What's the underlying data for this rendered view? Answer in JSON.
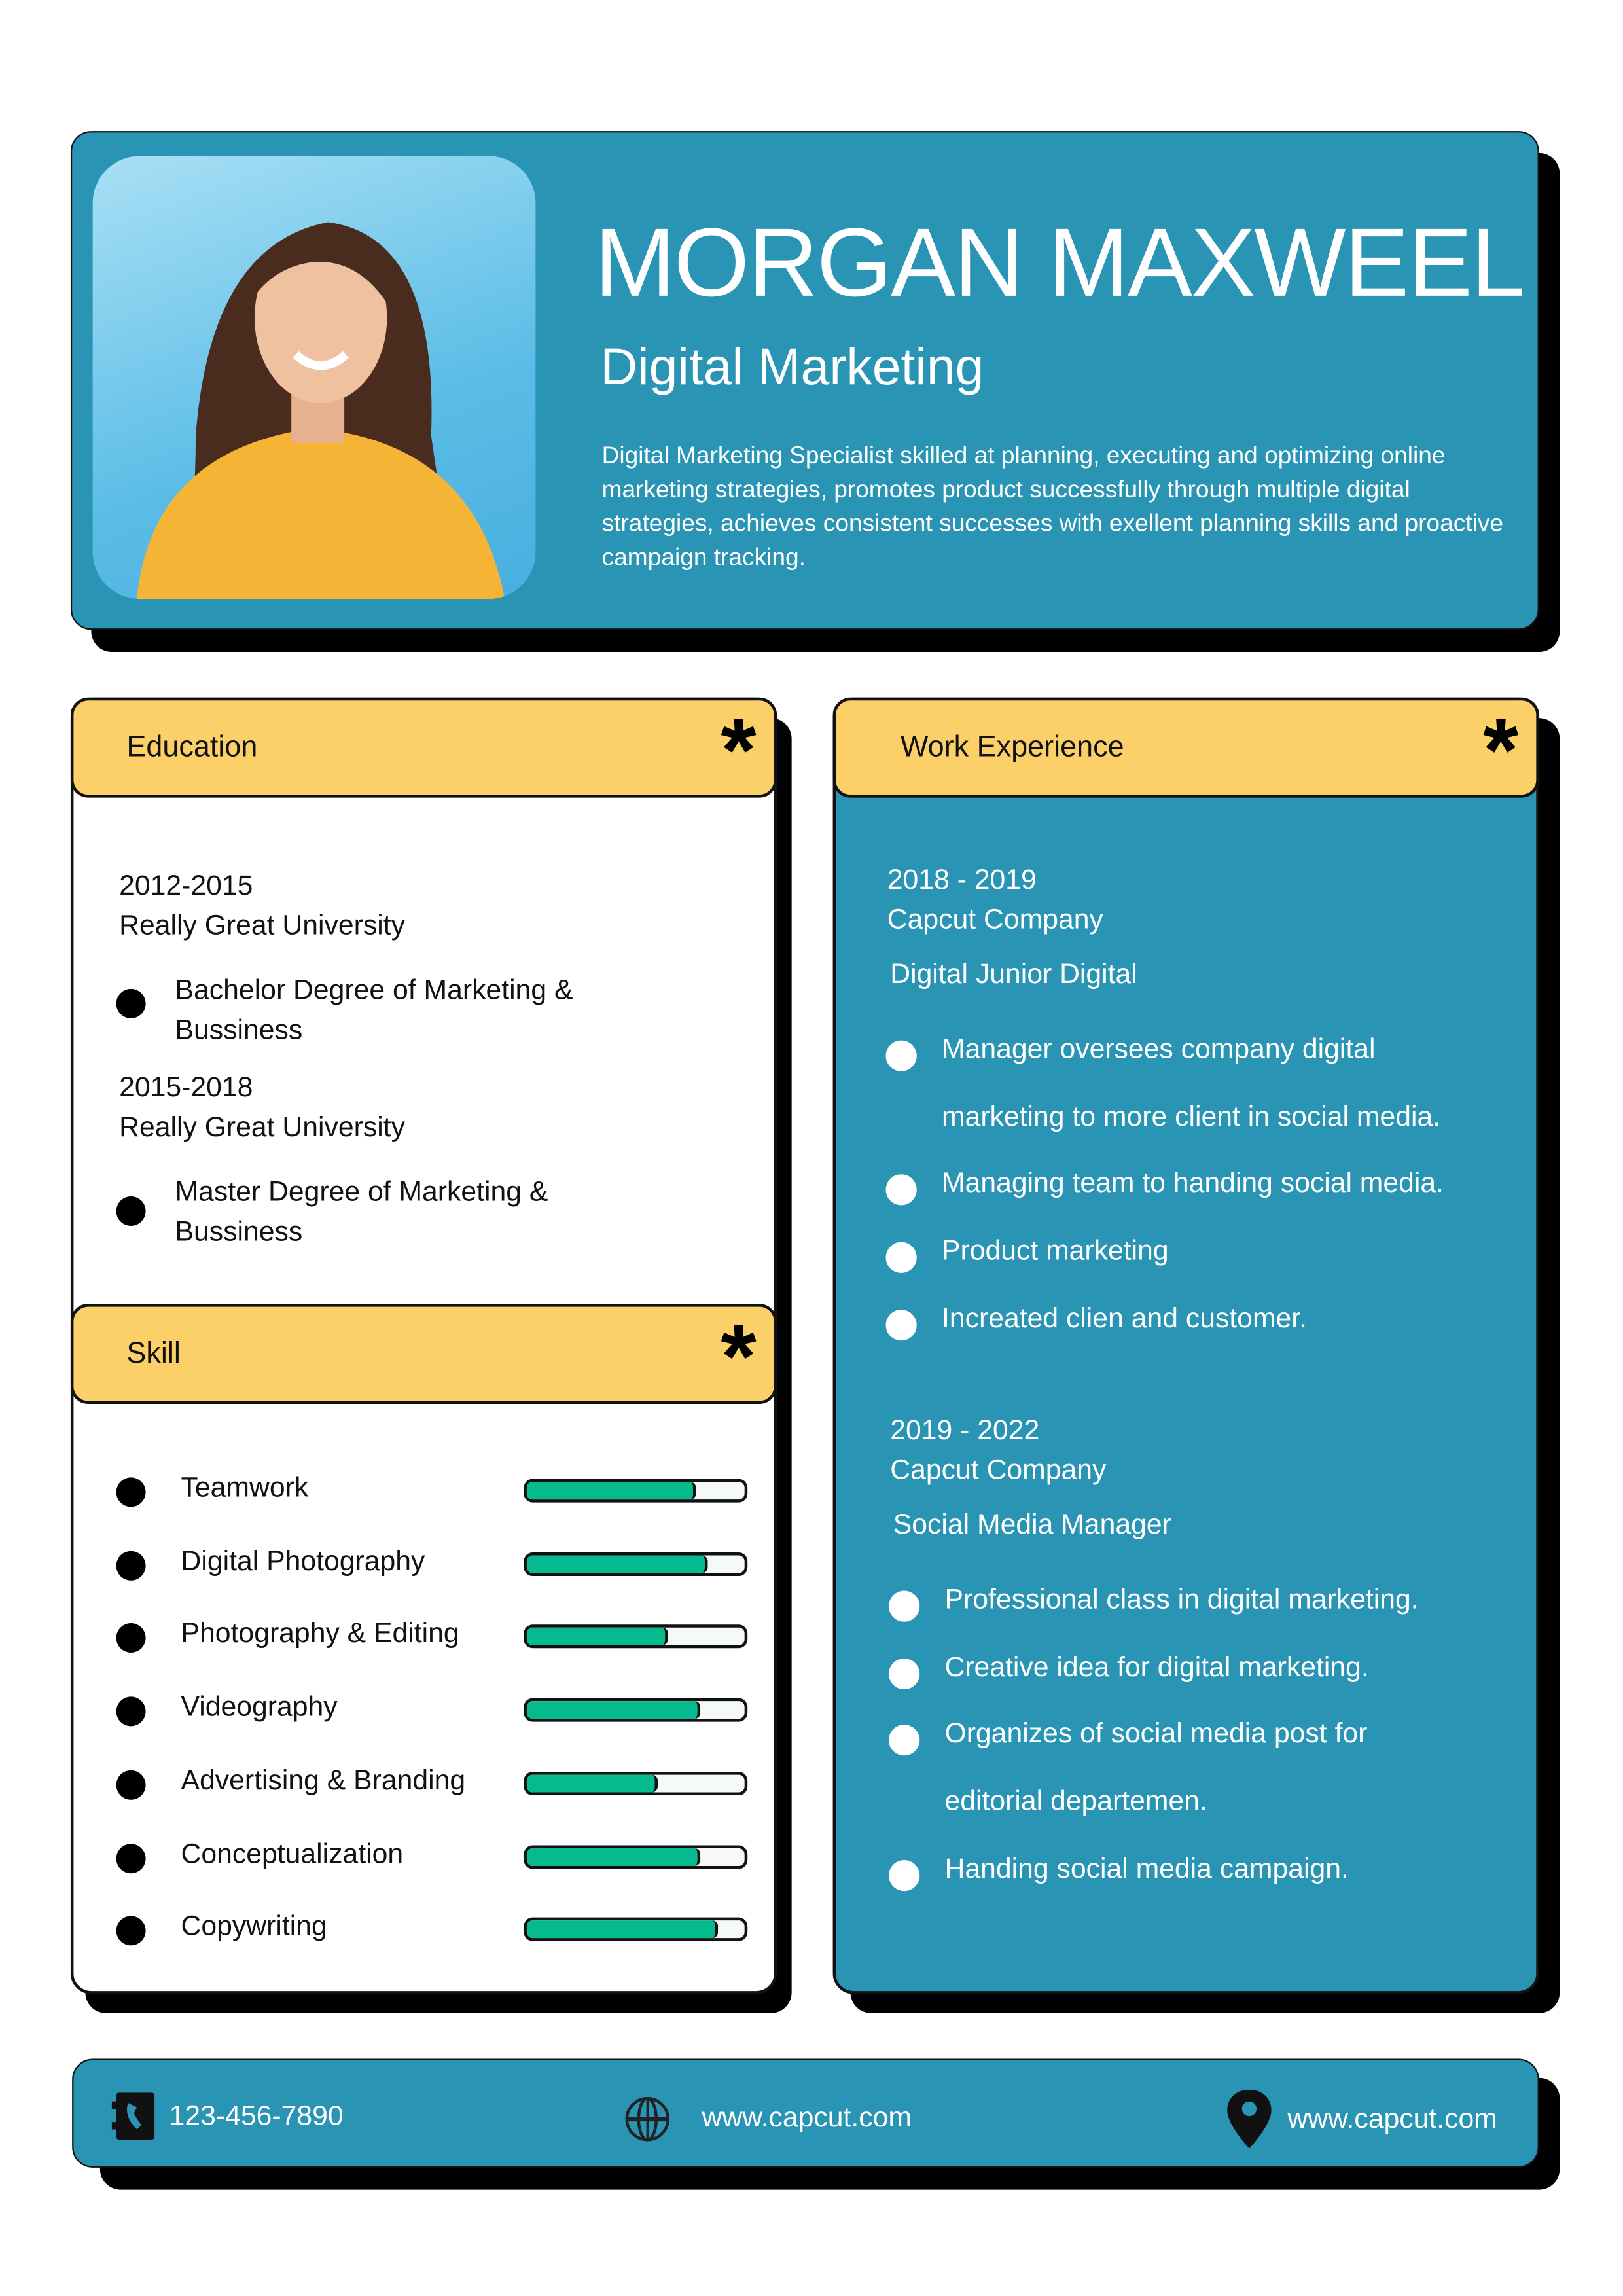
{
  "header": {
    "name": "MORGAN MAXWEEL",
    "title": "Digital Marketing",
    "summary": "Digital Marketing Specialist skilled at planning, executing and optimizing online marketing strategies, promotes product successfully through multiple digital strategies, achieves consistent successes with exellent planning skills and proactive campaign tracking."
  },
  "education": {
    "heading": "Education",
    "entries": [
      {
        "years": "2012-2015",
        "school": "Really Great University",
        "degree_line1": "Bachelor Degree of Marketing &",
        "degree_line2": "Bussiness"
      },
      {
        "years": "2015-2018",
        "school": "Really Great University",
        "degree_line1": "Master Degree of Marketing &",
        "degree_line2": "Bussiness"
      }
    ]
  },
  "skills": {
    "heading": "Skill",
    "items": [
      {
        "label": "Teamwork",
        "level": 0.78
      },
      {
        "label": "Digital Photography",
        "level": 0.83
      },
      {
        "label": "Photography & Editing",
        "level": 0.65
      },
      {
        "label": "Videography",
        "level": 0.8
      },
      {
        "label": "Advertising & Branding",
        "level": 0.6
      },
      {
        "label": "Conceptualization",
        "level": 0.8
      },
      {
        "label": "Copywriting",
        "level": 0.88
      }
    ]
  },
  "work": {
    "heading": "Work Experience",
    "jobs": [
      {
        "years": "2018 - 2019",
        "company": "Capcut Company",
        "role": "Digital Junior Digital",
        "bullets": [
          "Manager oversees company digital",
          "marketing to more client in social media.",
          "Managing team to handing social media.",
          "Product marketing",
          "Increated clien and customer."
        ]
      },
      {
        "years": "2019 - 2022",
        "company": "Capcut Company",
        "role": "Social Media Manager",
        "bullets": [
          "Professional class in digital marketing.",
          "Creative idea for digital marketing.",
          "Organizes of social media post for",
          "editorial departemen.",
          "Handing social media campaign."
        ]
      }
    ]
  },
  "contact": {
    "phone": "123-456-7890",
    "website": "www.capcut.com",
    "location": "www.capcut.com"
  },
  "colors": {
    "teal": "#2A94B5",
    "yellow": "#FBD068",
    "green": "#05BA8E"
  }
}
